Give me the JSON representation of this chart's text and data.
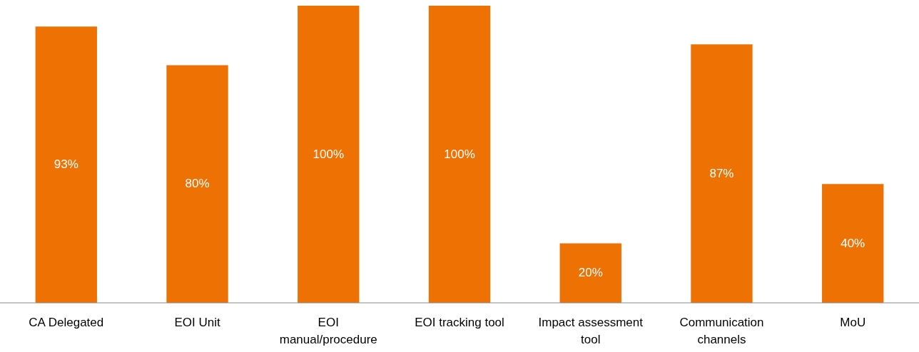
{
  "chart_data": {
    "type": "bar",
    "categories": [
      "CA Delegated",
      "EOI Unit",
      "EOI manual/procedure",
      "EOI tracking tool",
      "Impact assessment tool",
      "Communication channels",
      "MoU"
    ],
    "values": [
      93,
      80,
      100,
      100,
      20,
      87,
      40
    ],
    "value_labels": [
      "93%",
      "80%",
      "100%",
      "100%",
      "20%",
      "87%",
      "40%"
    ],
    "color": "#ee7203"
  }
}
